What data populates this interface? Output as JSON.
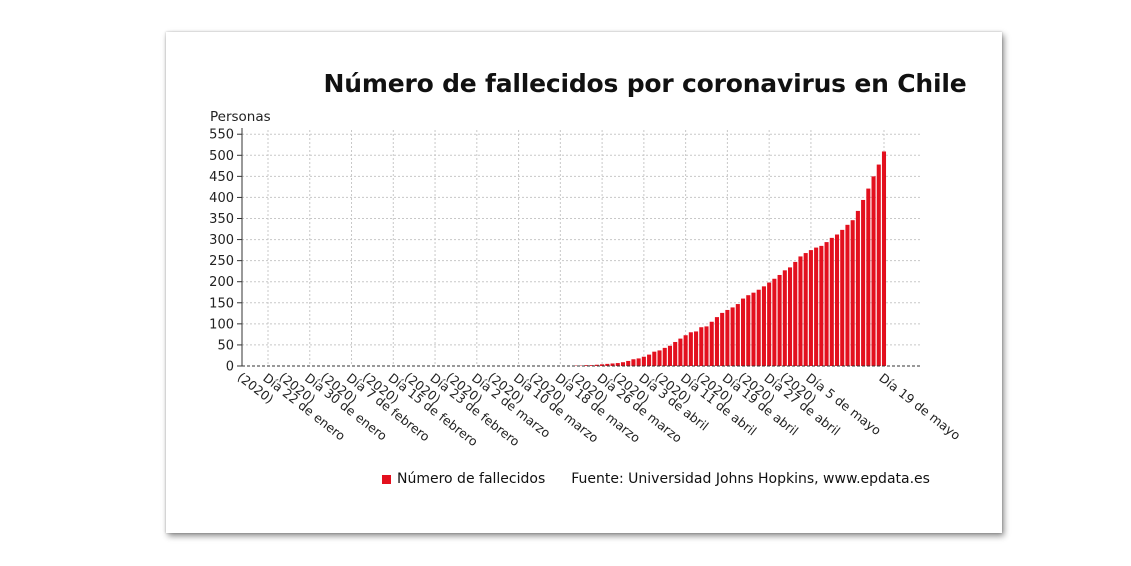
{
  "chart_data": {
    "type": "bar",
    "title": "Número de fallecidos por coronavirus en Chile",
    "ylabel": "Personas",
    "xlabel": "",
    "ylim": [
      0,
      560
    ],
    "yticks": [
      0,
      50,
      100,
      150,
      200,
      250,
      300,
      350,
      400,
      450,
      500,
      550
    ],
    "grid": true,
    "legend_position": "bottom",
    "series": [
      {
        "name": "Número de fallecidos",
        "color": "#e3101e",
        "start_date": "2020-03-21",
        "values": [
          1,
          1,
          2,
          2,
          3,
          4,
          5,
          6,
          7,
          9,
          12,
          16,
          18,
          22,
          27,
          34,
          37,
          43,
          48,
          57,
          65,
          73,
          80,
          82,
          92,
          94,
          105,
          116,
          126,
          133,
          139,
          147,
          160,
          168,
          174,
          181,
          189,
          198,
          207,
          216,
          227,
          234,
          247,
          260,
          268,
          275,
          281,
          285,
          294,
          304,
          312,
          323,
          335,
          346,
          368,
          394,
          421,
          450,
          478,
          509
        ],
        "label_note": ""
      }
    ],
    "x_range_start": "2020-01-22",
    "x_range_end": "2020-05-19",
    "x_tick_labels": [
      {
        "line1": "Día 22 de enero",
        "line2": "(2020)"
      },
      {
        "line1": "Día 30 de enero",
        "line2": "(2020)"
      },
      {
        "line1": "Día 7 de febrero",
        "line2": "(2020)"
      },
      {
        "line1": "Día 15 de febrero",
        "line2": "(2020)"
      },
      {
        "line1": "Día 23 de febrero",
        "line2": "(2020)"
      },
      {
        "line1": "Día 2 de marzo",
        "line2": "(2020)"
      },
      {
        "line1": "Día 10 de marzo",
        "line2": "(2020)"
      },
      {
        "line1": "Día 18 de marzo",
        "line2": "(2020)"
      },
      {
        "line1": "Día 26 de marzo",
        "line2": "(2020)"
      },
      {
        "line1": "Día 3 de abril",
        "line2": "(2020)"
      },
      {
        "line1": "Día 11 de abril",
        "line2": "(2020)"
      },
      {
        "line1": "Día 19 de abril",
        "line2": "(2020)"
      },
      {
        "line1": "Día 27 de abril",
        "line2": "(2020)"
      },
      {
        "line1": "Día 5 de mayo",
        "line2": "(2020)"
      },
      {
        "line1": "Día 19 de mayo",
        "line2": ""
      }
    ]
  },
  "legend": {
    "series_label": "Número de fallecidos",
    "source": "Fuente: Universidad Johns Hopkins, www.epdata.es"
  }
}
